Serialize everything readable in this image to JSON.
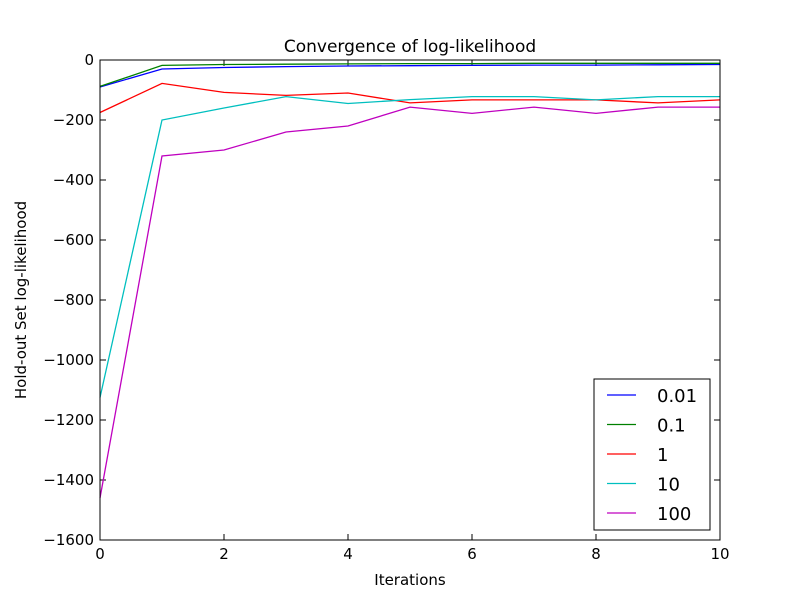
{
  "chart_data": {
    "type": "line",
    "title": "Convergence of log-likelihood",
    "xlabel": "Iterations",
    "ylabel": "Hold-out Set log-likelihood",
    "xlim": [
      0,
      10
    ],
    "ylim": [
      -1600,
      0
    ],
    "xticks": [
      0,
      2,
      4,
      6,
      8,
      10
    ],
    "yticks": [
      0,
      -200,
      -400,
      -600,
      -800,
      -1000,
      -1200,
      -1400,
      -1600
    ],
    "grid": false,
    "legend_position": "lower-right",
    "x": [
      0,
      1,
      2,
      3,
      4,
      5,
      6,
      7,
      8,
      9,
      10
    ],
    "series": [
      {
        "name": "0.01",
        "color": "#0000ff",
        "values": [
          -90,
          -30,
          -25,
          -22,
          -20,
          -19,
          -18,
          -17,
          -17,
          -16,
          -15
        ]
      },
      {
        "name": "0.1",
        "color": "#008000",
        "values": [
          -88,
          -18,
          -15,
          -14,
          -13,
          -12,
          -12,
          -11,
          -11,
          -11,
          -11
        ]
      },
      {
        "name": "1",
        "color": "#ff0000",
        "values": [
          -175,
          -78,
          -108,
          -118,
          -110,
          -143,
          -133,
          -133,
          -133,
          -143,
          -133
        ]
      },
      {
        "name": "10",
        "color": "#00bfbf",
        "values": [
          -1125,
          -200,
          -160,
          -122,
          -145,
          -132,
          -122,
          -122,
          -133,
          -122,
          -122
        ]
      },
      {
        "name": "100",
        "color": "#bf00bf",
        "values": [
          -1460,
          -320,
          -300,
          -240,
          -220,
          -157,
          -178,
          -157,
          -178,
          -157,
          -157
        ]
      }
    ]
  }
}
